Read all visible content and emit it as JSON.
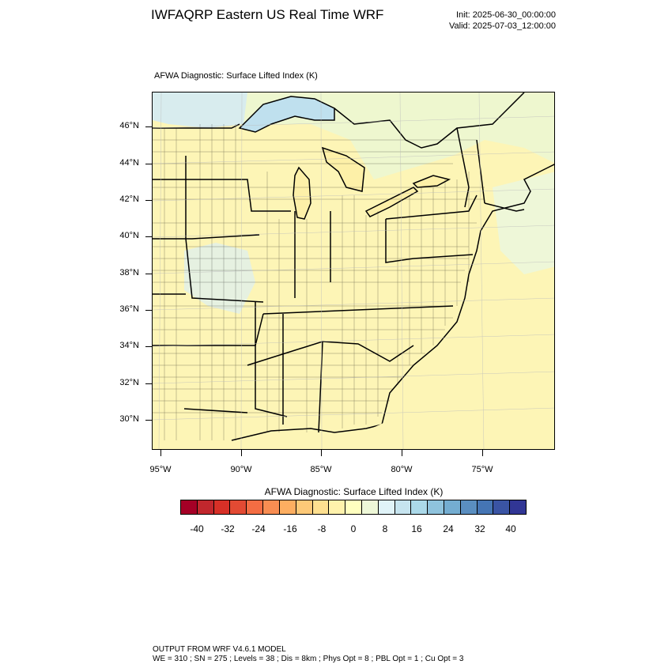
{
  "header": {
    "title": "IWFAQRP Eastern US Real Time WRF",
    "init": "Init: 2025-06-30_00:00:00",
    "valid": "Valid: 2025-07-03_12:00:00"
  },
  "map": {
    "field_title": "AFWA Diagnostic: Surface Lifted Index   (K)",
    "lat_labels": [
      "46°N",
      "44°N",
      "42°N",
      "40°N",
      "38°N",
      "36°N",
      "34°N",
      "32°N",
      "30°N"
    ],
    "lon_labels": [
      "95°W",
      "90°W",
      "85°W",
      "80°W",
      "75°W"
    ]
  },
  "colorbar": {
    "title": "AFWA Diagnostic: Surface Lifted Index  (K)",
    "labels": [
      "-40",
      "-32",
      "-24",
      "-16",
      "-8",
      "0",
      "8",
      "16",
      "24",
      "32",
      "40"
    ],
    "colors": [
      "#a50026",
      "#c1272d",
      "#d73027",
      "#e34a33",
      "#f46d43",
      "#f88d52",
      "#fdae61",
      "#fdc978",
      "#fee090",
      "#fff2ac",
      "#ffffbf",
      "#eef8d8",
      "#e0f3f8",
      "#c6e4ef",
      "#abd9e9",
      "#8fc3dd",
      "#74add1",
      "#5a8ec0",
      "#4575b4",
      "#3a54a4",
      "#313695"
    ]
  },
  "footer": {
    "line1": "OUTPUT FROM WRF V4.6.1 MODEL",
    "line2": "WE = 310 ; SN = 275 ; Levels = 38 ; Dis = 8km ; Phys Opt = 8 ; PBL Opt = 1 ; Cu Opt = 3"
  }
}
